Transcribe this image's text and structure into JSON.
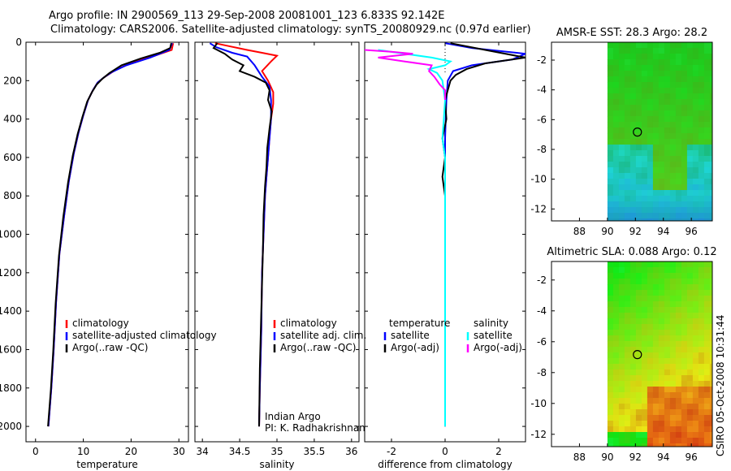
{
  "header": {
    "line1": "Argo profile: IN 2900569_113 29-Sep-2008 20081001_123 6.833S 92.142E",
    "line2": "Climatology: CARS2006. Satellite-adjusted climatology: synTS_20080929.nc (0.97d earlier)"
  },
  "colors": {
    "clim": "#ff0000",
    "sat": "#0000ff",
    "argo": "#000000",
    "sat_diff_s": "#00ffff",
    "argo_diff_s": "#ff00ff"
  },
  "chart_data": [
    {
      "id": "temperature",
      "type": "line",
      "xlabel": "temperature",
      "xlim": [
        -2,
        32
      ],
      "ylim": [
        0,
        2080
      ],
      "xticks": [
        "0",
        "10",
        "20",
        "30"
      ],
      "xtick_values": [
        0,
        10,
        20,
        30
      ],
      "yticks": [
        "0",
        "200",
        "400",
        "600",
        "800",
        "1000",
        "1200",
        "1400",
        "1600",
        "1800",
        "2000"
      ],
      "ytick_values": [
        0,
        200,
        400,
        600,
        800,
        1000,
        1200,
        1400,
        1600,
        1800,
        2000
      ],
      "legend": [
        "climatology",
        "satellite-adjusted climatology",
        "Argo(..raw -QC)"
      ],
      "series": [
        {
          "name": "climatology",
          "color": "#ff0000",
          "points": [
            [
              28.8,
              5
            ],
            [
              28.5,
              40
            ],
            [
              25,
              70
            ],
            [
              21,
              100
            ],
            [
              17,
              140
            ],
            [
              14.5,
              180
            ],
            [
              13,
              210
            ],
            [
              12,
              250
            ],
            [
              11,
              300
            ],
            [
              10,
              380
            ],
            [
              9,
              470
            ],
            [
              8,
              580
            ],
            [
              7,
              720
            ],
            [
              6,
              900
            ],
            [
              5,
              1100
            ],
            [
              4.3,
              1350
            ],
            [
              3.8,
              1600
            ],
            [
              3.3,
              1800
            ],
            [
              2.7,
              2000
            ]
          ]
        },
        {
          "name": "satellite-adjusted climatology",
          "color": "#0000ff",
          "points": [
            [
              28.6,
              5
            ],
            [
              28,
              40
            ],
            [
              24,
              80
            ],
            [
              19,
              120
            ],
            [
              16,
              155
            ],
            [
              14.2,
              185
            ],
            [
              13,
              210
            ],
            [
              12,
              250
            ],
            [
              11,
              300
            ],
            [
              10,
              380
            ],
            [
              9,
              470
            ],
            [
              8,
              580
            ],
            [
              7,
              720
            ],
            [
              6,
              900
            ],
            [
              5,
              1100
            ],
            [
              4.3,
              1350
            ],
            [
              3.8,
              1600
            ],
            [
              3.3,
              1800
            ],
            [
              2.7,
              2000
            ]
          ]
        },
        {
          "name": "Argo(..raw -QC)",
          "color": "#000000",
          "points": [
            [
              28.4,
              5
            ],
            [
              28.2,
              30
            ],
            [
              26,
              55
            ],
            [
              22,
              85
            ],
            [
              18,
              120
            ],
            [
              15.5,
              160
            ],
            [
              14,
              190
            ],
            [
              12.8,
              220
            ],
            [
              11.8,
              260
            ],
            [
              10.8,
              310
            ],
            [
              9.8,
              390
            ],
            [
              8.8,
              480
            ],
            [
              7.8,
              590
            ],
            [
              6.8,
              730
            ],
            [
              5.8,
              910
            ],
            [
              4.9,
              1110
            ],
            [
              4.2,
              1360
            ],
            [
              3.7,
              1610
            ],
            [
              3.2,
              1810
            ],
            [
              2.6,
              2000
            ]
          ]
        }
      ]
    },
    {
      "id": "salinity",
      "type": "line",
      "xlabel": "salinity",
      "xlim": [
        33.9,
        36.1
      ],
      "ylim": [
        0,
        2080
      ],
      "xticks": [
        "34",
        "34.5",
        "35",
        "35.5",
        "36"
      ],
      "xtick_values": [
        34,
        34.5,
        35,
        35.5,
        36
      ],
      "legend": [
        "climatology",
        "satellite adj. clim.",
        "Argo(..raw -QC)"
      ],
      "annotation": [
        "Indian Argo",
        "PI: K. Radhakrishnan"
      ],
      "series": [
        {
          "name": "climatology",
          "color": "#ff0000",
          "points": [
            [
              34.17,
              5
            ],
            [
              34.35,
              20
            ],
            [
              34.6,
              40
            ],
            [
              34.8,
              55
            ],
            [
              35.0,
              70
            ],
            [
              34.92,
              100
            ],
            [
              34.8,
              150
            ],
            [
              34.88,
              200
            ],
            [
              34.95,
              260
            ],
            [
              34.95,
              320
            ],
            [
              34.92,
              400
            ],
            [
              34.9,
              500
            ],
            [
              34.88,
              600
            ],
            [
              34.86,
              700
            ],
            [
              34.84,
              800
            ],
            [
              34.82,
              1000
            ],
            [
              34.8,
              1200
            ],
            [
              34.79,
              1500
            ],
            [
              34.77,
              1800
            ],
            [
              34.76,
              2000
            ]
          ]
        },
        {
          "name": "satellite adj. clim.",
          "color": "#0000ff",
          "points": [
            [
              34.1,
              5
            ],
            [
              34.18,
              25
            ],
            [
              34.4,
              55
            ],
            [
              34.6,
              75
            ],
            [
              34.7,
              120
            ],
            [
              34.8,
              180
            ],
            [
              34.9,
              230
            ],
            [
              34.92,
              300
            ],
            [
              34.92,
              400
            ],
            [
              34.9,
              500
            ],
            [
              34.88,
              600
            ],
            [
              34.86,
              700
            ],
            [
              34.84,
              800
            ],
            [
              34.82,
              1000
            ],
            [
              34.8,
              1200
            ],
            [
              34.79,
              1500
            ],
            [
              34.77,
              1800
            ],
            [
              34.76,
              2000
            ]
          ]
        },
        {
          "name": "Argo(..raw -QC)",
          "color": "#000000",
          "points": [
            [
              34.2,
              5
            ],
            [
              34.15,
              30
            ],
            [
              34.3,
              60
            ],
            [
              34.4,
              90
            ],
            [
              34.55,
              120
            ],
            [
              34.5,
              150
            ],
            [
              34.7,
              180
            ],
            [
              34.85,
              210
            ],
            [
              34.9,
              250
            ],
            [
              34.88,
              300
            ],
            [
              34.93,
              360
            ],
            [
              34.9,
              450
            ],
            [
              34.87,
              550
            ],
            [
              34.86,
              650
            ],
            [
              34.84,
              750
            ],
            [
              34.82,
              900
            ],
            [
              34.81,
              1100
            ],
            [
              34.79,
              1400
            ],
            [
              34.77,
              1700
            ],
            [
              34.76,
              2000
            ]
          ]
        }
      ]
    },
    {
      "id": "difference",
      "type": "line",
      "xlabel": "difference from climatology",
      "xlim": [
        -3,
        3
      ],
      "ylim": [
        0,
        2080
      ],
      "xticks": [
        "-2",
        "0",
        "2"
      ],
      "xtick_values": [
        -2,
        0,
        2
      ],
      "legend_headers": [
        "temperature",
        "salinity"
      ],
      "legend_temperature": [
        "satellite",
        "Argo(-adj)"
      ],
      "legend_salinity": [
        "satellite",
        "Argo(-adj)"
      ],
      "series": [
        {
          "name": "temperature satellite",
          "color": "#0000ff",
          "points": [
            [
              0,
              5
            ],
            [
              1,
              30
            ],
            [
              3,
              60
            ],
            [
              2.5,
              90
            ],
            [
              1,
              120
            ],
            [
              0.3,
              150
            ],
            [
              0.1,
              200
            ],
            [
              0.05,
              300
            ],
            [
              0,
              500
            ],
            [
              0,
              800
            ],
            [
              0,
              1200
            ],
            [
              0,
              1600
            ],
            [
              0,
              2000
            ]
          ]
        },
        {
          "name": "temperature Argo(-adj)",
          "color": "#000000",
          "points": [
            [
              0.2,
              5
            ],
            [
              1.5,
              40
            ],
            [
              3,
              80
            ],
            [
              1.5,
              110
            ],
            [
              0.8,
              140
            ],
            [
              0.4,
              170
            ],
            [
              0.2,
              200
            ],
            [
              0.1,
              250
            ],
            [
              0,
              300
            ],
            [
              0.05,
              400
            ],
            [
              -0.1,
              500
            ],
            [
              0,
              600
            ],
            [
              -0.1,
              700
            ],
            [
              0,
              800
            ],
            [
              0,
              1000
            ],
            [
              0,
              1200
            ],
            [
              0,
              1600
            ],
            [
              0,
              2000
            ]
          ]
        },
        {
          "name": "salinity satellite",
          "color": "#00ffff",
          "points": [
            [
              -2.5,
              40
            ],
            [
              -1.5,
              60
            ],
            [
              -0.5,
              80
            ],
            [
              0.2,
              100
            ],
            [
              0,
              120
            ],
            [
              -0.6,
              140
            ],
            [
              -0.3,
              160
            ],
            [
              -0.1,
              200
            ],
            [
              0,
              300
            ],
            [
              -0.05,
              400
            ],
            [
              -0.1,
              500
            ],
            [
              0,
              600
            ],
            [
              0,
              1000
            ],
            [
              0,
              1500
            ],
            [
              0,
              2000
            ]
          ]
        },
        {
          "name": "salinity Argo(-adj)",
          "color": "#ff00ff",
          "points": [
            [
              -3,
              40
            ],
            [
              -2,
              50
            ],
            [
              -1.2,
              60
            ],
            [
              -2.5,
              80
            ],
            [
              -1.5,
              100
            ],
            [
              -0.5,
              120
            ],
            [
              -0.6,
              150
            ],
            [
              -0.4,
              180
            ],
            [
              -0.2,
              220
            ],
            [
              0,
              250
            ],
            [
              0,
              300
            ]
          ]
        }
      ]
    },
    {
      "id": "amsr_sst",
      "type": "heatmap",
      "title": "AMSR-E SST: 28.3 Argo: 28.2",
      "xlim": [
        86,
        97.5
      ],
      "ylim": [
        -12.8,
        -0.8
      ],
      "xticks": [
        "88",
        "90",
        "92",
        "94",
        "96"
      ],
      "xtick_values": [
        88,
        90,
        92,
        94,
        96
      ],
      "yticks": [
        "-2",
        "-4",
        "-6",
        "-8",
        "-10",
        "-12"
      ],
      "ytick_values": [
        -2,
        -4,
        -6,
        -8,
        -10,
        -12
      ],
      "data_xlim": [
        90,
        97.5
      ],
      "marker": {
        "lon": 92.142,
        "lat": -6.833
      }
    },
    {
      "id": "altimetric_sla",
      "type": "heatmap",
      "title": "Altimetric SLA: 0.088 Argo: 0.12",
      "xlim": [
        86,
        97.5
      ],
      "ylim": [
        -12.8,
        -0.8
      ],
      "xticks": [
        "88",
        "90",
        "92",
        "94",
        "96"
      ],
      "xtick_values": [
        88,
        90,
        92,
        94,
        96
      ],
      "yticks": [
        "-2",
        "-4",
        "-6",
        "-8",
        "-10",
        "-12"
      ],
      "ytick_values": [
        -2,
        -4,
        -6,
        -8,
        -10,
        -12
      ],
      "data_xlim": [
        90,
        97.5
      ],
      "marker": {
        "lon": 92.142,
        "lat": -6.833
      }
    }
  ],
  "footer": {
    "stamp": "CSIRO 05-Oct-2008 10:31:44"
  }
}
